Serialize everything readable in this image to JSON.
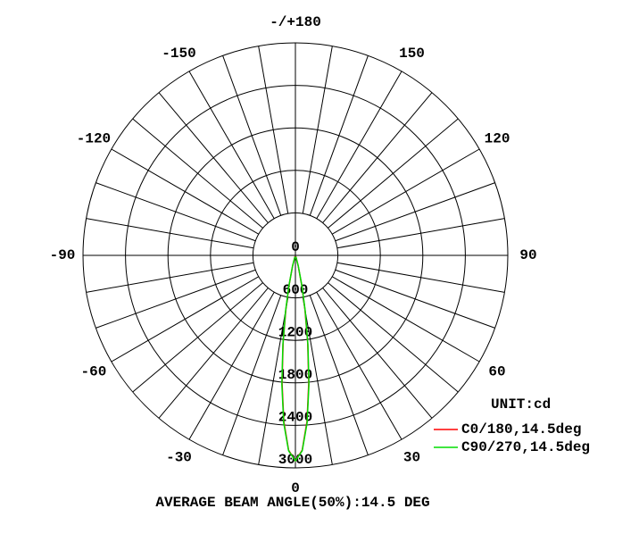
{
  "chart_data": {
    "type": "polar",
    "theta": [
      -20,
      -15,
      -12,
      -10,
      -8,
      -6,
      -4,
      -2,
      0,
      2,
      4,
      6,
      8,
      10,
      12,
      15,
      20
    ],
    "series": [
      {
        "name": "C0/180,14.5deg",
        "color": "#ff0000",
        "values": [
          15,
          149,
          434,
          776,
          1247,
          1804,
          2349,
          2751,
          2900,
          2751,
          2349,
          1804,
          1247,
          776,
          434,
          149,
          15
        ]
      },
      {
        "name": "C90/270,14.5deg",
        "color": "#00dd00",
        "values": [
          20,
          160,
          450,
          800,
          1270,
          1830,
          2370,
          2760,
          2900,
          2760,
          2370,
          1830,
          1270,
          800,
          450,
          160,
          20
        ]
      }
    ],
    "rlim": [
      0,
      3000
    ],
    "rticks": [
      0,
      600,
      1200,
      1800,
      2400,
      3000
    ],
    "thetaticks": [
      0,
      30,
      60,
      90,
      120,
      150,
      {
        "value": 180,
        "label": "-/+180"
      },
      -150,
      -120,
      -90,
      -60,
      -30
    ],
    "unit_label": "UNIT:cd",
    "footer": "AVERAGE BEAM ANGLE(50%):14.5 DEG",
    "grid": true
  }
}
